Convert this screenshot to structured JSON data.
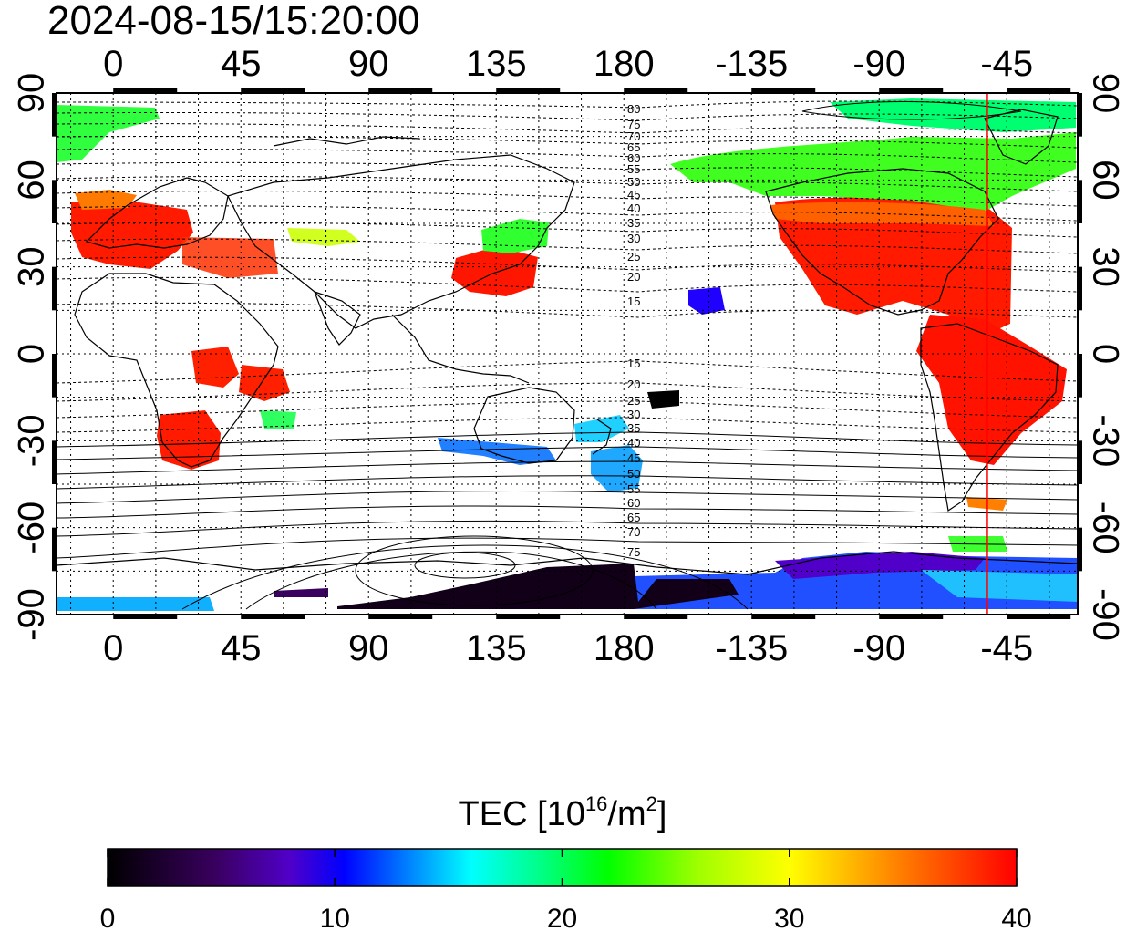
{
  "title": "2024-08-15/15:20:00",
  "map": {
    "lon_ticks_top": [
      "0",
      "45",
      "90",
      "135",
      "180",
      "-135",
      "-90",
      "-45"
    ],
    "lon_ticks_bottom": [
      "0",
      "45",
      "90",
      "135",
      "180",
      "-135",
      "-90",
      "-45"
    ],
    "lat_ticks_left": [
      "90",
      "60",
      "30",
      "0",
      "-30",
      "-60",
      "-90"
    ],
    "lat_ticks_right": [
      "90",
      "60",
      "30",
      "0",
      "-30",
      "-60",
      "-90"
    ],
    "grid": "dotted every 15 degrees",
    "terminator_line_color": "#ff0000",
    "terminator_longitude": -52,
    "contour_labels_north": [
      "80",
      "75",
      "70",
      "65",
      "60",
      "55",
      "50",
      "45",
      "40",
      "35",
      "30",
      "25",
      "20",
      "15"
    ],
    "contour_labels_south": [
      "15",
      "20",
      "25",
      "30",
      "35",
      "40",
      "45",
      "50",
      "55",
      "60",
      "65",
      "70",
      "75"
    ]
  },
  "colorbar": {
    "label_main": "TEC  [10",
    "label_sup1": "16",
    "label_mid": "/m",
    "label_sup2": "2",
    "label_end": "]",
    "ticks": [
      "0",
      "10",
      "20",
      "30",
      "40"
    ],
    "range": [
      0,
      40
    ],
    "colors": [
      "#000000",
      "#3a0060",
      "#5000c8",
      "#0000ff",
      "#0080ff",
      "#00ffff",
      "#00ff80",
      "#00ff00",
      "#a0ff00",
      "#ffff00",
      "#ff8000",
      "#ff0000"
    ]
  }
}
